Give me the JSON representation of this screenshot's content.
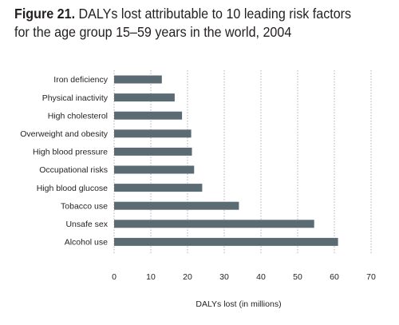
{
  "title_prefix": "Figure 21.",
  "title_rest": " DALYs lost attributable to 10 leading risk factors for the age group 15–59 years in the world, 2004",
  "chart_data": {
    "type": "bar",
    "orientation": "horizontal",
    "categories": [
      "Iron deficiency",
      "Physical inactivity",
      "High cholesterol",
      "Overweight and obesity",
      "High blood pressure",
      "Occupational risks",
      "High blood glucose",
      "Tobacco use",
      "Unsafe sex",
      "Alcohol use"
    ],
    "values": [
      13,
      16.5,
      18.5,
      21,
      21.2,
      21.8,
      24,
      34,
      54.5,
      61
    ],
    "xlabel": "DALYs lost (in millions)",
    "ylabel": "",
    "xlim": [
      0,
      70
    ],
    "xticks": [
      "0",
      "10",
      "20",
      "30",
      "40",
      "50",
      "60",
      "70"
    ],
    "grid": "vertical dotted",
    "bar_color": "#5b6b73",
    "grid_color": "#b0b0b0"
  }
}
